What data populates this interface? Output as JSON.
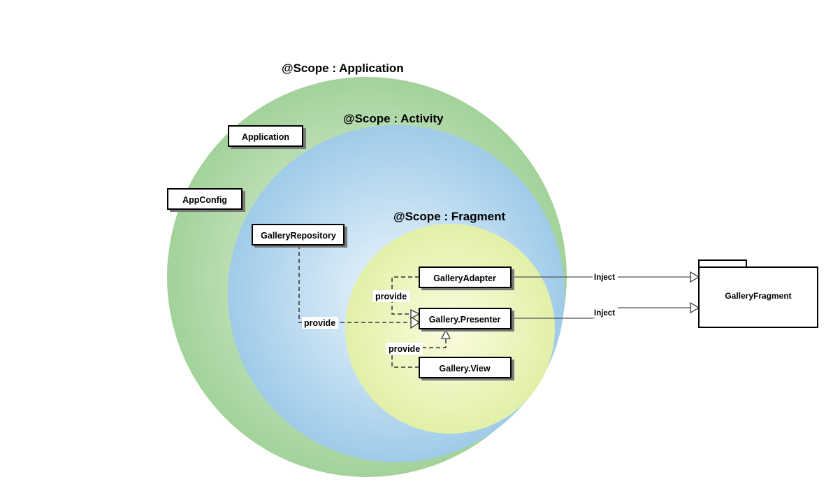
{
  "scopes": {
    "application": "@Scope : Application",
    "activity": "@Scope : Activity",
    "fragment": "@Scope : Fragment"
  },
  "nodes": {
    "application": "Application",
    "app_config": "AppConfig",
    "gallery_repository": "GalleryRepository",
    "gallery_adapter": "GalleryAdapter",
    "gallery_presenter": "Gallery.Presenter",
    "gallery_view": "Gallery.View",
    "gallery_fragment": "GalleryFragment"
  },
  "edges": {
    "provide_repository": "provide",
    "provide_adapter": "provide",
    "provide_view": "provide",
    "inject_adapter": "Inject",
    "inject_presenter": "Inject"
  },
  "colors": {
    "application_scope": "#a8d5a0",
    "activity_scope": "#a7d0ec",
    "fragment_scope": "#f3f5a4"
  }
}
